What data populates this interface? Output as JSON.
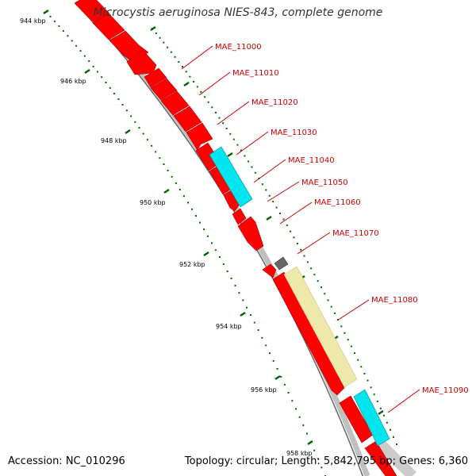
{
  "title": "Microcystis aeruginosa NIES-843, complete genome",
  "footer": {
    "accession": "Accession: NC_010296",
    "summary": "Topology: circular; Length: 5,842,795 bp; Genes: 6,360"
  },
  "colors": {
    "cds": "#ff0000",
    "trna": "#00e5ee",
    "misc": "#666666",
    "rrna": "#eee8aa",
    "backbone": "#888888",
    "ticks": "#006400",
    "label": "#cc0000"
  },
  "axis_ticks": [
    {
      "label": "944 kbp"
    },
    {
      "label": "946 kbp"
    },
    {
      "label": "948 kbp"
    },
    {
      "label": "950 kbp"
    },
    {
      "label": "952 kbp"
    },
    {
      "label": "954 kbp"
    },
    {
      "label": "956 kbp"
    },
    {
      "label": "958 kbp"
    }
  ],
  "gene_labels": [
    {
      "text": "MAE_11000"
    },
    {
      "text": "MAE_11010"
    },
    {
      "text": "MAE_11020"
    },
    {
      "text": "MAE_11030"
    },
    {
      "text": "MAE_11040"
    },
    {
      "text": "MAE_11050"
    },
    {
      "text": "MAE_11060"
    },
    {
      "text": "MAE_11070"
    },
    {
      "text": "MAE_11080"
    },
    {
      "text": "MAE_11090"
    }
  ]
}
